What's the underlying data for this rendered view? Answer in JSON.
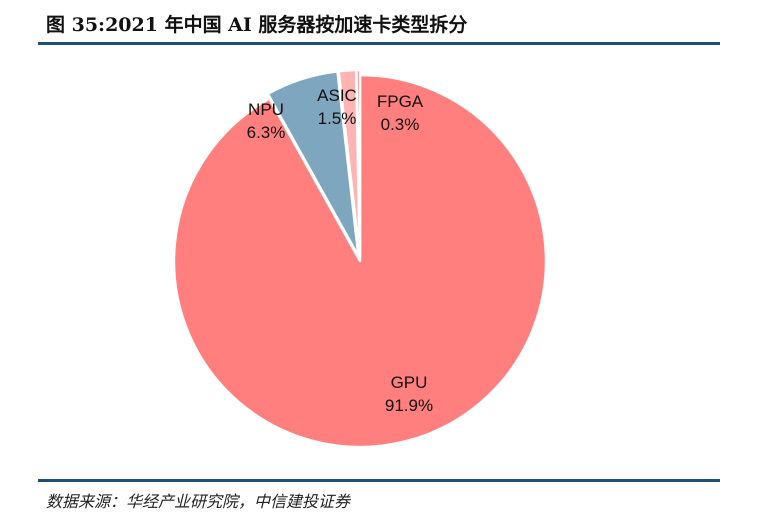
{
  "title": "图 35:2021 年中国 AI 服务器按加速卡类型拆分",
  "source": "数据来源：华经产业研究院，中信建投证券",
  "chart_data": {
    "type": "pie",
    "title": "图 35:2021 年中国 AI 服务器按加速卡类型拆分",
    "slices": [
      {
        "name": "GPU",
        "value": 91.9,
        "label": "91.9%",
        "color": "#ff7f7f"
      },
      {
        "name": "NPU",
        "value": 6.3,
        "label": "6.3%",
        "color": "#7fa6bf"
      },
      {
        "name": "ASIC",
        "value": 1.5,
        "label": "1.5%",
        "color": "#ffb3b3"
      },
      {
        "name": "FPGA",
        "value": 0.3,
        "label": "0.3%",
        "color": "#f28080"
      }
    ],
    "start": "12 o'clock",
    "direction": "clockwise",
    "legend": "none"
  }
}
